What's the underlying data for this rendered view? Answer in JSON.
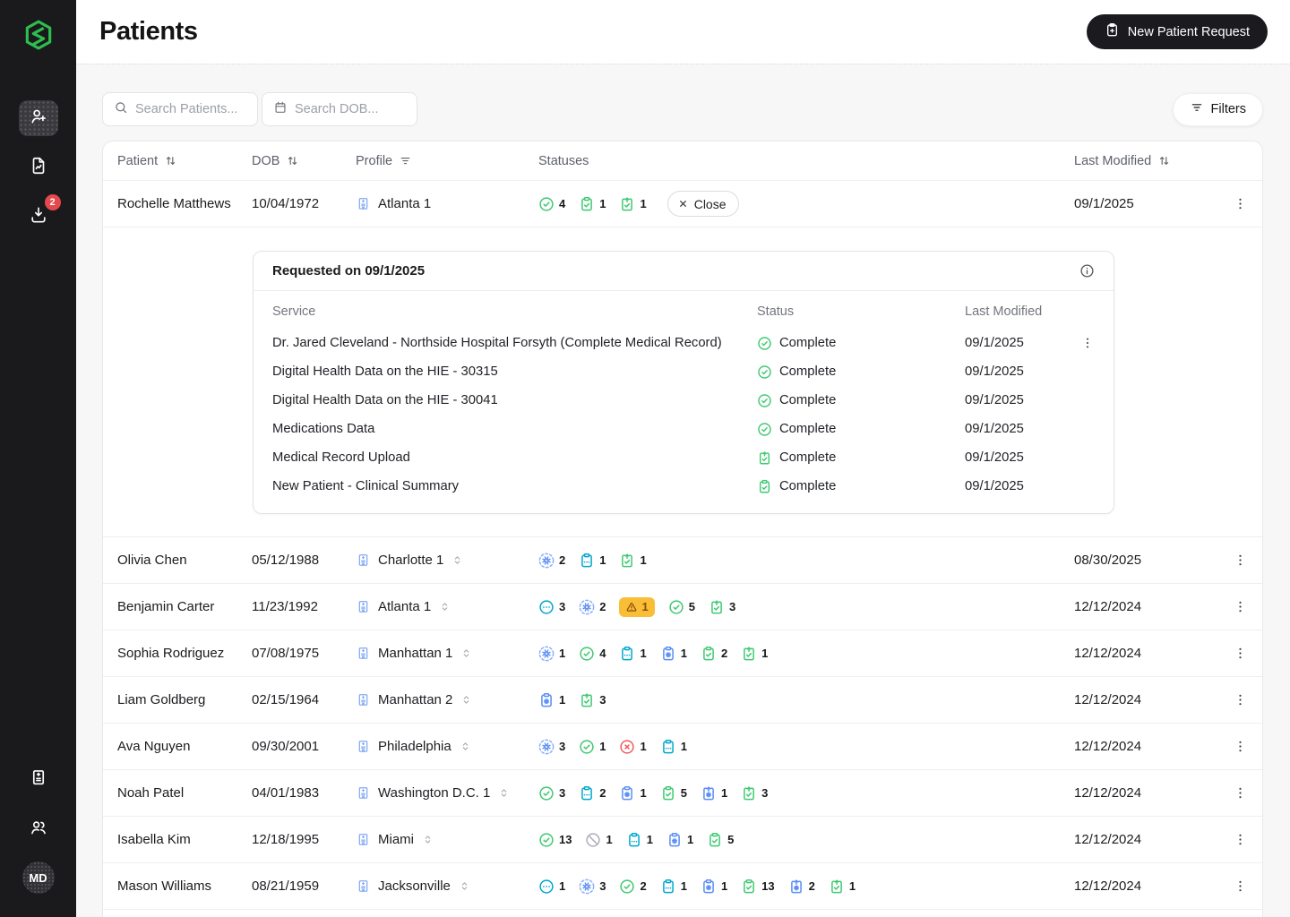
{
  "header": {
    "title": "Patients",
    "new_patient_button": "New Patient Request"
  },
  "sidebar": {
    "avatar": "MD",
    "downloads_badge": "2"
  },
  "toolbar": {
    "search_patients_placeholder": "Search Patients...",
    "search_dob_placeholder": "Search DOB...",
    "filters_label": "Filters"
  },
  "table": {
    "columns": {
      "patient": "Patient",
      "dob": "DOB",
      "profile": "Profile",
      "statuses": "Statuses",
      "last_modified": "Last Modified"
    },
    "rows": [
      {
        "patient": "Rochelle Matthews",
        "dob": "10/04/1972",
        "profile": {
          "name": "Atlanta 1",
          "selector": false
        },
        "statuses": [
          {
            "icon": "check-circle",
            "color": "green",
            "count": "4"
          },
          {
            "icon": "clipboard-check",
            "color": "green",
            "count": "1"
          },
          {
            "icon": "clipboard-upload-check",
            "color": "green",
            "count": "1"
          }
        ],
        "close_button": "Close",
        "last_modified": "09/1/2025",
        "expanded": true
      },
      {
        "patient": "Olivia Chen",
        "dob": "05/12/1988",
        "profile": {
          "name": "Charlotte 1",
          "selector": true
        },
        "statuses": [
          {
            "icon": "gear-processing",
            "color": "blue",
            "count": "2"
          },
          {
            "icon": "clipboard-dots",
            "color": "teal",
            "count": "1"
          },
          {
            "icon": "clipboard-upload-check",
            "color": "green",
            "count": "1"
          }
        ],
        "last_modified": "08/30/2025"
      },
      {
        "patient": "Benjamin Carter",
        "dob": "11/23/1992",
        "profile": {
          "name": "Atlanta 1",
          "selector": true
        },
        "statuses": [
          {
            "icon": "circle-dots",
            "color": "teal",
            "count": "3"
          },
          {
            "icon": "gear-processing",
            "color": "blue",
            "count": "2"
          },
          {
            "icon": "warning",
            "color": "amber",
            "count": "1"
          },
          {
            "icon": "check-circle",
            "color": "green",
            "count": "5"
          },
          {
            "icon": "clipboard-upload-check",
            "color": "green",
            "count": "3"
          }
        ],
        "last_modified": "12/12/2024"
      },
      {
        "patient": "Sophia Rodriguez",
        "dob": "07/08/1975",
        "profile": {
          "name": "Manhattan 1",
          "selector": true
        },
        "statuses": [
          {
            "icon": "gear-processing",
            "color": "blue",
            "count": "1"
          },
          {
            "icon": "check-circle",
            "color": "green",
            "count": "4"
          },
          {
            "icon": "clipboard-dots",
            "color": "teal",
            "count": "1"
          },
          {
            "icon": "clipboard-gear",
            "color": "blue",
            "count": "1"
          },
          {
            "icon": "clipboard-check",
            "color": "green",
            "count": "2"
          },
          {
            "icon": "clipboard-upload-check",
            "color": "green",
            "count": "1"
          }
        ],
        "last_modified": "12/12/2024"
      },
      {
        "patient": "Liam Goldberg",
        "dob": "02/15/1964",
        "profile": {
          "name": "Manhattan 2",
          "selector": true
        },
        "statuses": [
          {
            "icon": "clipboard-gear",
            "color": "blue",
            "count": "1"
          },
          {
            "icon": "clipboard-upload-check",
            "color": "green",
            "count": "3"
          }
        ],
        "last_modified": "12/12/2024"
      },
      {
        "patient": "Ava Nguyen",
        "dob": "09/30/2001",
        "profile": {
          "name": "Philadelphia",
          "selector": true
        },
        "statuses": [
          {
            "icon": "gear-processing",
            "color": "blue",
            "count": "3"
          },
          {
            "icon": "check-circle",
            "color": "green",
            "count": "1"
          },
          {
            "icon": "x-circle",
            "color": "red",
            "count": "1"
          },
          {
            "icon": "clipboard-dots",
            "color": "teal",
            "count": "1"
          }
        ],
        "last_modified": "12/12/2024"
      },
      {
        "patient": "Noah Patel",
        "dob": "04/01/1983",
        "profile": {
          "name": "Washington D.C. 1",
          "selector": true
        },
        "statuses": [
          {
            "icon": "check-circle",
            "color": "green",
            "count": "3"
          },
          {
            "icon": "clipboard-dots",
            "color": "teal",
            "count": "2"
          },
          {
            "icon": "clipboard-gear",
            "color": "blue",
            "count": "1"
          },
          {
            "icon": "clipboard-check",
            "color": "green",
            "count": "5"
          },
          {
            "icon": "clipboard-gear-upload",
            "color": "blue",
            "count": "1"
          },
          {
            "icon": "clipboard-upload-check",
            "color": "green",
            "count": "3"
          }
        ],
        "last_modified": "12/12/2024"
      },
      {
        "patient": "Isabella Kim",
        "dob": "12/18/1995",
        "profile": {
          "name": "Miami",
          "selector": true
        },
        "statuses": [
          {
            "icon": "check-circle",
            "color": "green",
            "count": "13"
          },
          {
            "icon": "slash-circle",
            "color": "gray",
            "count": "1"
          },
          {
            "icon": "clipboard-dots",
            "color": "teal",
            "count": "1"
          },
          {
            "icon": "clipboard-gear",
            "color": "blue",
            "count": "1"
          },
          {
            "icon": "clipboard-check",
            "color": "green",
            "count": "5"
          }
        ],
        "last_modified": "12/12/2024"
      },
      {
        "patient": "Mason Williams",
        "dob": "08/21/1959",
        "profile": {
          "name": "Jacksonville",
          "selector": true
        },
        "statuses": [
          {
            "icon": "circle-dots",
            "color": "teal",
            "count": "1"
          },
          {
            "icon": "gear-processing",
            "color": "blue",
            "count": "3"
          },
          {
            "icon": "check-circle",
            "color": "green",
            "count": "2"
          },
          {
            "icon": "clipboard-dots",
            "color": "teal",
            "count": "1"
          },
          {
            "icon": "clipboard-gear",
            "color": "blue",
            "count": "1"
          },
          {
            "icon": "clipboard-check",
            "color": "green",
            "count": "13"
          },
          {
            "icon": "clipboard-gear-upload",
            "color": "blue",
            "count": "2"
          },
          {
            "icon": "clipboard-upload-check",
            "color": "green",
            "count": "1"
          }
        ],
        "last_modified": "12/12/2024"
      },
      {
        "patient": "",
        "dob": "",
        "profile": null,
        "partial": true,
        "statuses": [
          {
            "icon": "gear-processing",
            "color": "blue",
            "count": ""
          },
          {
            "icon": "check-circle",
            "color": "green",
            "count": ""
          },
          {
            "icon": "clipboard-dots",
            "color": "teal",
            "count": ""
          },
          {
            "icon": "clipboard-check",
            "color": "green",
            "count": ""
          }
        ],
        "last_modified": ""
      }
    ]
  },
  "expanded_panel": {
    "title": "Requested on 09/1/2025",
    "columns": {
      "service": "Service",
      "status": "Status",
      "last_modified": "Last Modified"
    },
    "services": [
      {
        "name": "Dr. Jared Cleveland - Northside Hospital Forsyth (Complete Medical Record)",
        "icon": "check-circle",
        "status": "Complete",
        "last_modified": "09/1/2025",
        "menu": true
      },
      {
        "name": "Digital Health Data on the HIE - 30315",
        "icon": "check-circle",
        "status": "Complete",
        "last_modified": "09/1/2025"
      },
      {
        "name": "Digital Health Data on the HIE - 30041",
        "icon": "check-circle",
        "status": "Complete",
        "last_modified": "09/1/2025"
      },
      {
        "name": "Medications Data",
        "icon": "check-circle",
        "status": "Complete",
        "last_modified": "09/1/2025"
      },
      {
        "name": "Medical Record Upload",
        "icon": "clipboard-upload-check",
        "status": "Complete",
        "last_modified": "09/1/2025"
      },
      {
        "name": "New Patient - Clinical Summary",
        "icon": "clipboard-check",
        "status": "Complete",
        "last_modified": "09/1/2025"
      }
    ]
  },
  "colors": {
    "green": "#3EC971",
    "teal": "#00A7CC",
    "blue": "#5B8DF6",
    "blue_light": "#7FA8F2",
    "red": "#F15B5B",
    "gray": "#ABAEB5",
    "amber_bg": "#F9BE36",
    "amber_fg": "#8A4A0E",
    "brand_green": "#2DBE4F",
    "badge_red": "#E5484D"
  }
}
